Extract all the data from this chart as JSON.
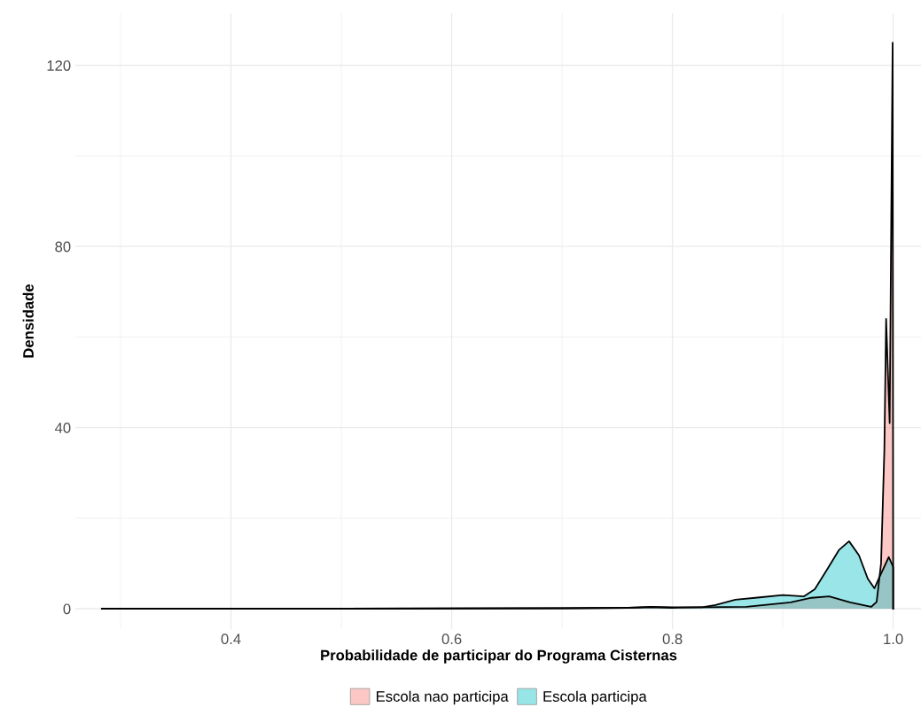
{
  "chart_data": {
    "type": "area",
    "xlabel": "Probabilidade de participar do Programa Cisternas",
    "ylabel": "Densidade",
    "xlim": [
      0.259,
      1.026
    ],
    "ylim": [
      -4.5,
      131.5
    ],
    "xticks": [
      {
        "value": 0.3,
        "label": null
      },
      0.4,
      {
        "value": 0.5,
        "label": null
      },
      0.6,
      {
        "value": 0.7,
        "label": null
      },
      0.8,
      {
        "value": 0.9,
        "label": null
      },
      {
        "value": 1,
        "label": "1.0"
      }
    ],
    "yticks": [
      0,
      {
        "value": 20,
        "label": null
      },
      40,
      {
        "value": 60,
        "label": null
      },
      80,
      {
        "value": 100,
        "label": null
      },
      120
    ],
    "grid": true,
    "legend": "bottom",
    "series": [
      {
        "name": "Escola nao participa",
        "color": "#F8766D",
        "x": [
          0.283,
          0.5,
          0.7,
          0.76,
          0.78,
          0.8,
          0.827,
          0.867,
          0.907,
          0.926,
          0.942,
          0.961,
          0.98,
          0.985,
          0.989,
          0.992,
          0.9936,
          0.9968,
          0.9995,
          1.0
        ],
        "values": [
          0,
          0,
          0.1,
          0.2,
          0.3,
          0.2,
          0.3,
          0.4,
          1.4,
          2.4,
          2.7,
          1.4,
          0.4,
          1.5,
          10,
          35,
          64,
          41,
          125,
          0
        ]
      },
      {
        "name": "Escola participa",
        "color": "#00BFC4",
        "x": [
          0.283,
          0.5,
          0.7,
          0.76,
          0.78,
          0.8,
          0.827,
          0.839,
          0.857,
          0.879,
          0.9,
          0.919,
          0.929,
          0.94,
          0.951,
          0.96,
          0.969,
          0.977,
          0.983,
          0.988,
          0.996,
          1.0,
          1.0
        ],
        "values": [
          0,
          0,
          0.1,
          0.2,
          0.4,
          0.3,
          0.3,
          0.8,
          2.0,
          2.5,
          3.0,
          2.7,
          4.3,
          8.6,
          13,
          14.9,
          11.8,
          6.6,
          4.5,
          7.2,
          11.4,
          9.2,
          0
        ]
      }
    ]
  }
}
